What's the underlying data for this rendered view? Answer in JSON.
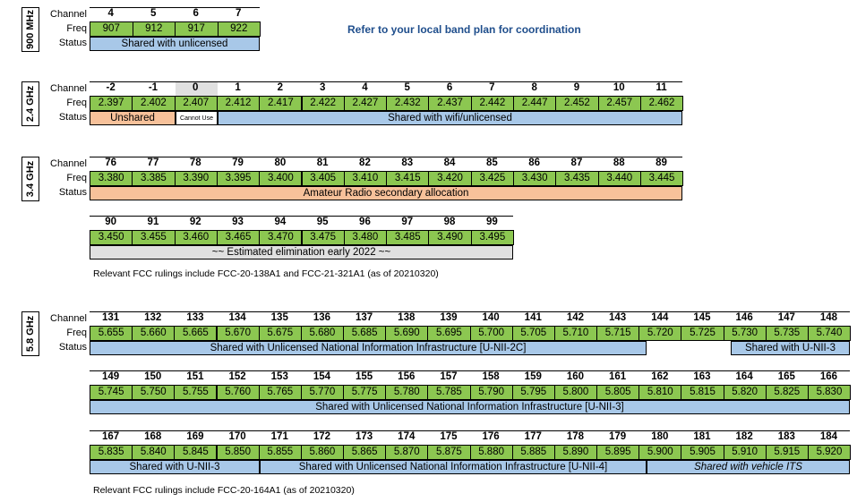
{
  "labels": {
    "channel": "Channel",
    "freq": "Freq",
    "status": "Status"
  },
  "notice": "Refer to your local band plan for coordination",
  "colors": {
    "freq": "#8cc751",
    "shared": "#a8c8e8",
    "unshared": "#f7c19a",
    "gray": "#e0e0e0",
    "notice": "#1f4e8c"
  },
  "b900": {
    "band": "900 MHz",
    "channels": [
      "4",
      "5",
      "6",
      "7"
    ],
    "freqs": [
      "907",
      "912",
      "917",
      "922"
    ],
    "status": "Shared with unlicensed"
  },
  "b24": {
    "band": "2.4 GHz",
    "channels": [
      "-2",
      "-1",
      "0",
      "1",
      "2",
      "3",
      "4",
      "5",
      "6",
      "7",
      "8",
      "9",
      "10",
      "11"
    ],
    "freqs": [
      "2.397",
      "2.402",
      "2.407",
      "2.412",
      "2.417",
      "2.422",
      "2.427",
      "2.432",
      "2.437",
      "2.442",
      "2.447",
      "2.452",
      "2.457",
      "2.462"
    ],
    "status_unshared": "Unshared",
    "status_cannot": "Cannot Use",
    "status_shared": "Shared with wifi/unlicensed"
  },
  "b34": {
    "band": "3.4 GHz",
    "channels": [
      "76",
      "77",
      "78",
      "79",
      "80",
      "81",
      "82",
      "83",
      "84",
      "85",
      "86",
      "87",
      "88",
      "89"
    ],
    "freqs": [
      "3.380",
      "3.385",
      "3.390",
      "3.395",
      "3.400",
      "3.405",
      "3.410",
      "3.415",
      "3.420",
      "3.425",
      "3.430",
      "3.435",
      "3.440",
      "3.445"
    ],
    "status": "Amateur Radio secondary allocation",
    "channels2": [
      "90",
      "91",
      "92",
      "93",
      "94",
      "95",
      "96",
      "97",
      "98",
      "99"
    ],
    "freqs2": [
      "3.450",
      "3.455",
      "3.460",
      "3.465",
      "3.470",
      "3.475",
      "3.480",
      "3.485",
      "3.490",
      "3.495"
    ],
    "status2": "~~ Estimated elimination early 2022 ~~",
    "note": "Relevant FCC rulings include FCC-20-138A1 and FCC-21-321A1 (as of 20210320)"
  },
  "b58": {
    "band": "5.8 GHz",
    "row1_channels": [
      "131",
      "132",
      "133",
      "134",
      "135",
      "136",
      "137",
      "138",
      "139",
      "140",
      "141",
      "142",
      "143",
      "144",
      "145",
      "146",
      "147",
      "148"
    ],
    "row1_freqs": [
      "5.655",
      "5.660",
      "5.665",
      "5.670",
      "5.675",
      "5.680",
      "5.685",
      "5.690",
      "5.695",
      "5.700",
      "5.705",
      "5.710",
      "5.715",
      "5.720",
      "5.725",
      "5.730",
      "5.735",
      "5.740"
    ],
    "row1_status_a": "Shared with Unlicensed National Information Infrastructure [U-NII-2C]",
    "row1_status_b": "Shared with U-NII-3",
    "row2_channels": [
      "149",
      "150",
      "151",
      "152",
      "153",
      "154",
      "155",
      "156",
      "157",
      "158",
      "159",
      "160",
      "161",
      "162",
      "163",
      "164",
      "165",
      "166"
    ],
    "row2_freqs": [
      "5.745",
      "5.750",
      "5.755",
      "5.760",
      "5.765",
      "5.770",
      "5.775",
      "5.780",
      "5.785",
      "5.790",
      "5.795",
      "5.800",
      "5.805",
      "5.810",
      "5.815",
      "5.820",
      "5.825",
      "5.830"
    ],
    "row2_status": "Shared with Unlicensed National Information Infrastructure [U-NII-3]",
    "row3_channels": [
      "167",
      "168",
      "169",
      "170",
      "171",
      "172",
      "173",
      "174",
      "175",
      "176",
      "177",
      "178",
      "179",
      "180",
      "181",
      "182",
      "183",
      "184"
    ],
    "row3_freqs": [
      "5.835",
      "5.840",
      "5.845",
      "5.850",
      "5.855",
      "5.860",
      "5.865",
      "5.870",
      "5.875",
      "5.880",
      "5.885",
      "5.890",
      "5.895",
      "5.900",
      "5.905",
      "5.910",
      "5.915",
      "5.920"
    ],
    "row3_status_a": "Shared with U-NII-3",
    "row3_status_b": "Shared with Unlicensed National Information Infrastructure [U-NII-4]",
    "row3_status_c": "Shared with vehicle ITS",
    "note": "Relevant FCC rulings include FCC-20-164A1 (as of 20210320)"
  }
}
